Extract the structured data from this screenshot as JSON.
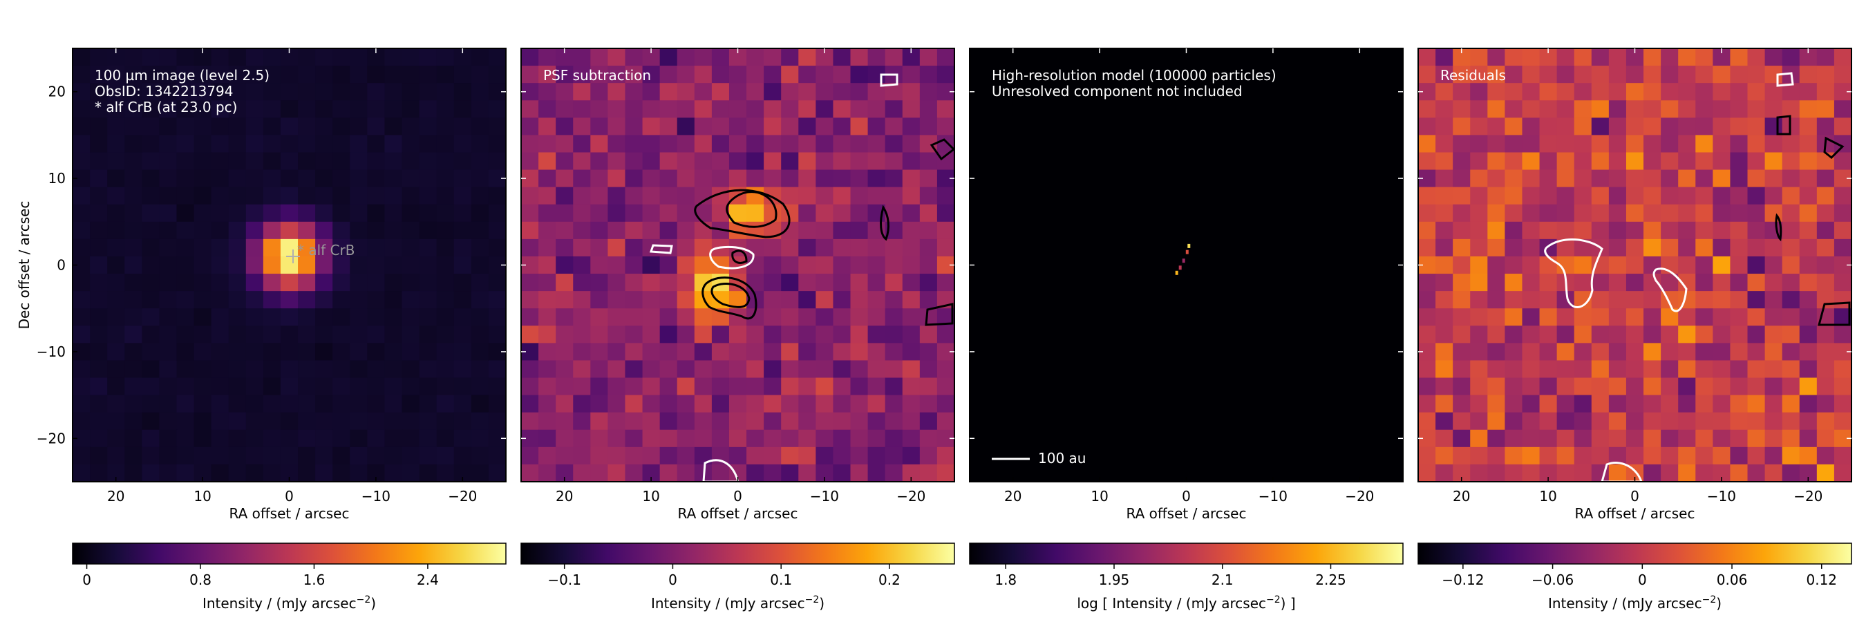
{
  "figure": {
    "panels": [
      {
        "id": "image",
        "annotation_lines": [
          "100 µm image (level 2.5)",
          "ObsID: 1342213794",
          "* alf CrB (at 23.0 pc)"
        ],
        "star_label": "* alf CrB",
        "xlabel": "RA offset / arcsec",
        "ylabel": "Dec offset / arcsec",
        "colorbar_label": "Intensity / (mJy arcsec",
        "colorbar_label_sup": "−2",
        "colorbar_label_end": ")",
        "colorbar_ticks": [
          "0",
          "0.8",
          "1.6",
          "2.4"
        ]
      },
      {
        "id": "psf-subtraction",
        "annotation_lines": [
          "PSF subtraction"
        ],
        "xlabel": "RA offset / arcsec",
        "colorbar_label": "Intensity / (mJy arcsec",
        "colorbar_label_sup": "−2",
        "colorbar_label_end": ")",
        "colorbar_ticks": [
          "−0.1",
          "0",
          "0.1",
          "0.2"
        ]
      },
      {
        "id": "model",
        "annotation_lines": [
          "High-resolution model (100000 particles)",
          "Unresolved component not included"
        ],
        "scalebar_label": "100 au",
        "xlabel": "RA offset / arcsec",
        "colorbar_label": "log [ Intensity / (mJy arcsec",
        "colorbar_label_sup": "−2",
        "colorbar_label_end": ") ]",
        "colorbar_ticks": [
          "1.8",
          "1.95",
          "2.1",
          "2.25"
        ]
      },
      {
        "id": "residuals",
        "annotation_lines": [
          "Residuals"
        ],
        "xlabel": "RA offset / arcsec",
        "colorbar_label": "Intensity / (mJy arcsec",
        "colorbar_label_sup": "−2",
        "colorbar_label_end": ")",
        "colorbar_ticks": [
          "−0.12",
          "−0.06",
          "0",
          "0.06",
          "0.12"
        ]
      }
    ]
  },
  "chart_data": [
    {
      "type": "heatmap",
      "annotation": "100 µm image (level 2.5) / ObsID: 1342213794 / * alf CrB (at 23.0 pc)",
      "xlabel": "RA offset / arcsec",
      "ylabel": "Dec offset / arcsec",
      "xlim": [
        25,
        -25
      ],
      "ylim": [
        -25,
        25
      ],
      "xticks": [
        20,
        10,
        0,
        -10,
        -20
      ],
      "yticks": [
        20,
        10,
        0,
        -10,
        -20
      ],
      "colormap": "inferno",
      "color_range": [
        -0.1,
        2.95
      ],
      "colorbar_ticks": [
        0,
        0.8,
        1.6,
        2.4
      ],
      "source": {
        "label": "* alf CrB",
        "ra_offset": 0,
        "dec_offset": 1,
        "peak_intensity": 2.9,
        "fwhm_arcsec": 6
      }
    },
    {
      "type": "heatmap",
      "annotation": "PSF subtraction",
      "xlabel": "RA offset / arcsec",
      "xlim": [
        25,
        -25
      ],
      "ylim": [
        -25,
        25
      ],
      "xticks": [
        20,
        10,
        0,
        -10,
        -20
      ],
      "yticks": [
        20,
        10,
        0,
        -10,
        -20
      ],
      "colormap": "inferno",
      "color_range": [
        -0.14,
        0.26
      ],
      "colorbar_ticks": [
        -0.1,
        0,
        0.1,
        0.2
      ],
      "features": [
        {
          "ra_offset": -2,
          "dec_offset": 6,
          "peak_intensity": 0.2
        },
        {
          "ra_offset": 3,
          "dec_offset": -3,
          "peak_intensity": 0.25
        }
      ]
    },
    {
      "type": "heatmap",
      "annotation": "High-resolution model (100000 particles) / Unresolved component not included",
      "xlabel": "RA offset / arcsec",
      "xlim": [
        25,
        -25
      ],
      "ylim": [
        -25,
        25
      ],
      "xticks": [
        20,
        10,
        0,
        -10,
        -20
      ],
      "yticks": [
        20,
        10,
        0,
        -10,
        -20
      ],
      "colormap": "inferno",
      "color_range": [
        1.75,
        2.35
      ],
      "colorbar_ticks": [
        1.8,
        1.95,
        2.1,
        2.25
      ],
      "scalebar": "100 au",
      "features": [
        {
          "ra_offset": -0.3,
          "dec_offset": 2.2,
          "value": 2.3
        },
        {
          "ra_offset": -0.1,
          "dec_offset": 1.5,
          "value": 2.1
        },
        {
          "ra_offset": 0.3,
          "dec_offset": 0.5,
          "value": 2.0
        },
        {
          "ra_offset": 0.7,
          "dec_offset": -0.3,
          "value": 2.05
        },
        {
          "ra_offset": 1.1,
          "dec_offset": -0.9,
          "value": 2.25
        }
      ]
    },
    {
      "type": "heatmap",
      "annotation": "Residuals",
      "xlabel": "RA offset / arcsec",
      "xlim": [
        25,
        -25
      ],
      "ylim": [
        -25,
        25
      ],
      "xticks": [
        20,
        10,
        0,
        -10,
        -20
      ],
      "yticks": [
        20,
        10,
        0,
        -10,
        -20
      ],
      "colormap": "inferno",
      "color_range": [
        -0.15,
        0.14
      ],
      "colorbar_ticks": [
        -0.12,
        -0.06,
        0,
        0.06,
        0.12
      ]
    }
  ]
}
